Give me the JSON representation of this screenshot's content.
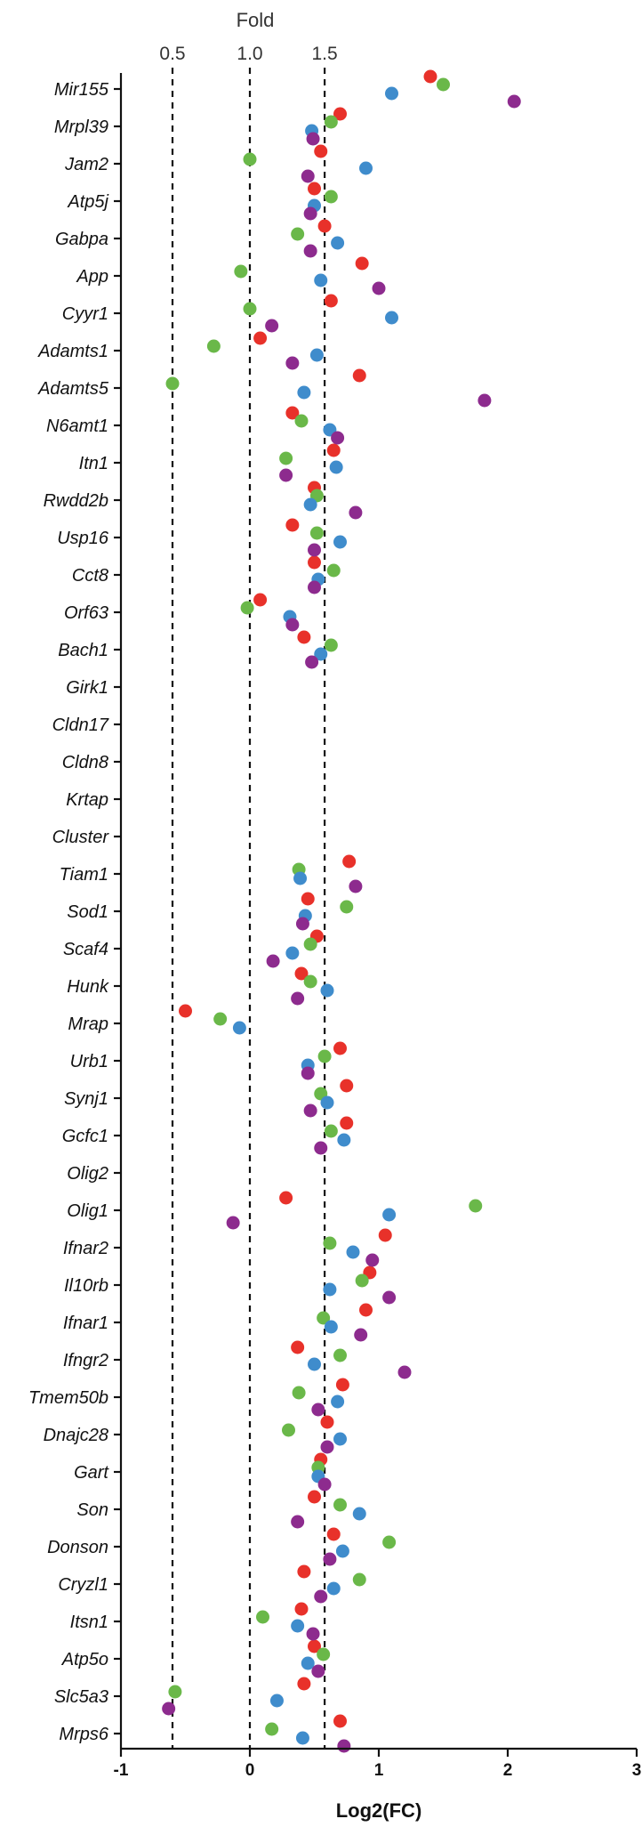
{
  "chart_data": {
    "type": "scatter",
    "xlabel": "Log2(FC)",
    "xlim": [
      -1,
      3
    ],
    "x_ticks": [
      "-1",
      "0",
      "1",
      "2",
      "3"
    ],
    "top_axis": {
      "title": "Fold",
      "ticks": [
        {
          "label": "0.5",
          "log2": -0.6
        },
        {
          "label": "1.0",
          "log2": 0
        },
        {
          "label": "1.5",
          "log2": 0.58
        }
      ]
    },
    "grid": false,
    "reference_lines_log2": [
      -0.6,
      0,
      0.58
    ],
    "genes": [
      "Mir155",
      "Mrpl39",
      "Jam2",
      "Atp5j",
      "Gabpa",
      "App",
      "Cyyr1",
      "Adamts1",
      "Adamts5",
      "N6amt1",
      "Itn1",
      "Rwdd2b",
      "Usp16",
      "Cct8",
      "Orf63",
      "Bach1",
      "Girk1",
      "Cldn17",
      "Cldn8",
      "Krtap",
      "Cluster",
      "Tiam1",
      "Sod1",
      "Scaf4",
      "Hunk",
      "Mrap",
      "Urb1",
      "Synj1",
      "Gcfc1",
      "Olig2",
      "Olig1",
      "Ifnar2",
      "Il10rb",
      "Ifnar1",
      "Ifngr2",
      "Tmem50b",
      "Dnajc28",
      "Gart",
      "Son",
      "Donson",
      "Cryzl1",
      "Itsn1",
      "Atp5o",
      "Slc5a3",
      "Mrps6"
    ],
    "series": [
      {
        "color": "#e8312a",
        "values": [
          1.4,
          0.7,
          0.55,
          0.5,
          0.58,
          0.87,
          0.63,
          0.08,
          0.85,
          0.33,
          0.65,
          0.5,
          0.33,
          0.5,
          0.08,
          0.42,
          null,
          null,
          null,
          null,
          null,
          0.77,
          0.45,
          0.52,
          0.4,
          -0.5,
          0.7,
          0.75,
          0.75,
          null,
          0.28,
          1.05,
          0.93,
          0.9,
          0.37,
          0.72,
          0.6,
          0.55,
          0.5,
          0.65,
          0.42,
          0.4,
          0.5,
          0.42,
          0.7
        ]
      },
      {
        "color": "#6ab849",
        "values": [
          1.5,
          0.63,
          0,
          0.63,
          0.37,
          -0.07,
          0,
          -0.28,
          -0.6,
          0.4,
          0.28,
          0.52,
          0.52,
          0.65,
          -0.02,
          0.63,
          null,
          null,
          null,
          null,
          null,
          0.38,
          0.75,
          0.47,
          0.47,
          -0.23,
          0.58,
          0.55,
          0.63,
          null,
          1.75,
          0.62,
          0.87,
          0.57,
          0.7,
          0.38,
          0.3,
          0.53,
          0.7,
          1.08,
          0.85,
          0.1,
          0.57,
          -0.58,
          0.17
        ]
      },
      {
        "color": "#3f8ccc",
        "values": [
          1.1,
          0.48,
          0.9,
          0.5,
          0.68,
          0.55,
          1.1,
          0.52,
          0.42,
          0.62,
          0.67,
          0.47,
          0.7,
          0.53,
          0.31,
          0.55,
          null,
          null,
          null,
          null,
          null,
          0.39,
          0.43,
          0.33,
          0.6,
          -0.08,
          0.45,
          0.6,
          0.73,
          null,
          1.08,
          0.8,
          0.62,
          0.63,
          0.5,
          0.68,
          0.7,
          0.53,
          0.85,
          0.72,
          0.65,
          0.37,
          0.45,
          0.21,
          0.41
        ]
      },
      {
        "color": "#8d2b8e",
        "values": [
          2.05,
          0.49,
          0.45,
          0.47,
          0.47,
          1.0,
          0.17,
          0.33,
          1.82,
          0.68,
          0.28,
          0.82,
          0.5,
          0.5,
          0.33,
          0.48,
          null,
          null,
          null,
          null,
          null,
          0.82,
          0.41,
          0.18,
          0.37,
          null,
          0.45,
          0.47,
          0.55,
          null,
          -0.13,
          0.95,
          1.08,
          0.86,
          1.2,
          0.53,
          0.6,
          0.58,
          0.37,
          0.62,
          0.55,
          0.49,
          0.53,
          -0.63,
          0.73
        ]
      }
    ]
  }
}
